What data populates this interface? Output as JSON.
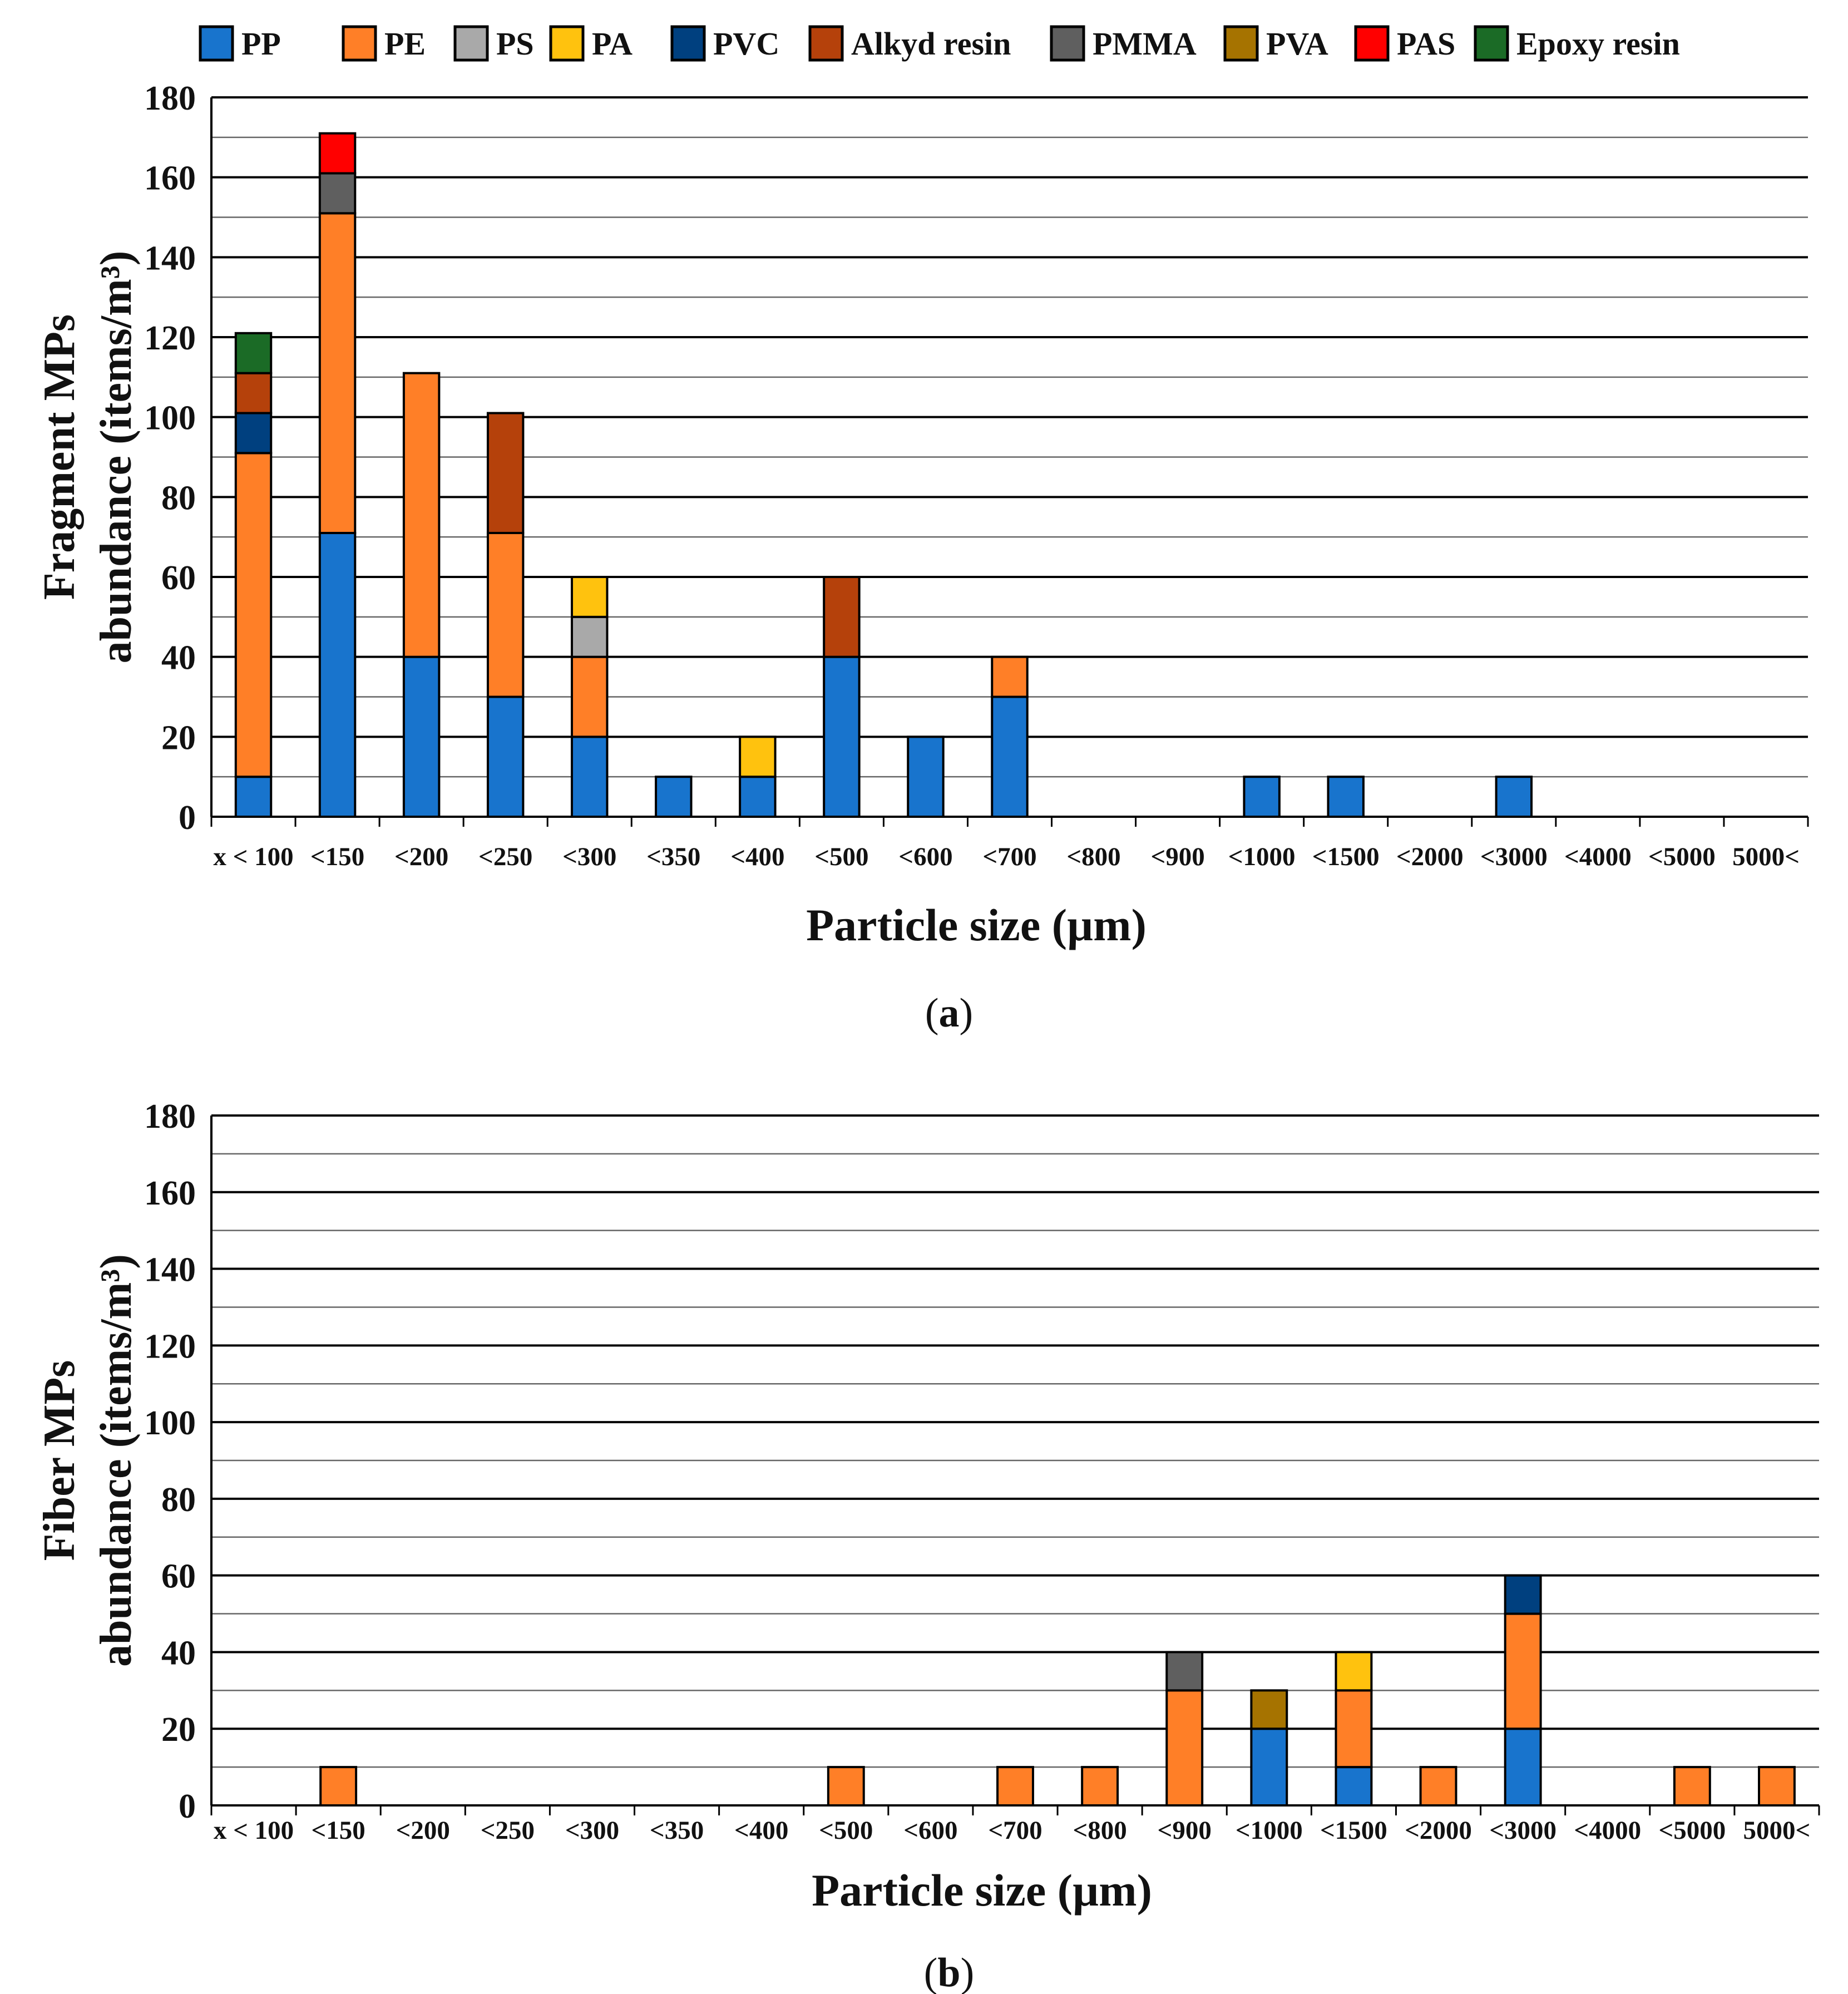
{
  "legend": [
    {
      "name": "PP",
      "color": "#1874CD"
    },
    {
      "name": "PE",
      "color": "#FF7F27"
    },
    {
      "name": "PS",
      "color": "#A9A9A9"
    },
    {
      "name": "PA",
      "color": "#FFC20E"
    },
    {
      "name": "PVC",
      "color": "#00407F"
    },
    {
      "name": "Alkyd resin",
      "color": "#B5410B"
    },
    {
      "name": "PMMA",
      "color": "#5F5F5F"
    },
    {
      "name": "PVA",
      "color": "#A67300"
    },
    {
      "name": "PAS",
      "color": "#FF0000"
    },
    {
      "name": "Epoxy resin",
      "color": "#1B6B26"
    }
  ],
  "chart_data": [
    {
      "type": "bar",
      "stacked": true,
      "panel_label": "a",
      "title": "",
      "xlabel": "Particle size (µm)",
      "ylabel": "Fragment MPs abundance (items/m³)",
      "ylabel_lines": [
        "Fragment MPs",
        "abundance (items/m³)"
      ],
      "ylim": [
        0,
        180
      ],
      "yticks": [
        0,
        20,
        40,
        60,
        80,
        100,
        120,
        140,
        160,
        180
      ],
      "categories": [
        "x < 100",
        "<150",
        "<200",
        "<250",
        "<300",
        "<350",
        "<400",
        "<500",
        "<600",
        "<700",
        "<800",
        "<900",
        "<1000",
        "<1500",
        "<2000",
        "<3000",
        "<4000",
        "<5000",
        "5000<"
      ],
      "series": [
        {
          "name": "PP",
          "values": [
            10,
            71,
            40,
            30,
            20,
            10,
            10,
            40,
            20,
            30,
            0,
            0,
            10,
            10,
            0,
            10,
            0,
            0,
            0
          ]
        },
        {
          "name": "PE",
          "values": [
            81,
            80,
            71,
            41,
            20,
            0,
            0,
            0,
            0,
            10,
            0,
            0,
            0,
            0,
            0,
            0,
            0,
            0,
            0
          ]
        },
        {
          "name": "PS",
          "values": [
            0,
            0,
            0,
            0,
            10,
            0,
            0,
            0,
            0,
            0,
            0,
            0,
            0,
            0,
            0,
            0,
            0,
            0,
            0
          ]
        },
        {
          "name": "PA",
          "values": [
            0,
            0,
            0,
            0,
            10,
            0,
            10,
            0,
            0,
            0,
            0,
            0,
            0,
            0,
            0,
            0,
            0,
            0,
            0
          ]
        },
        {
          "name": "PVC",
          "values": [
            10,
            0,
            0,
            0,
            0,
            0,
            0,
            0,
            0,
            0,
            0,
            0,
            0,
            0,
            0,
            0,
            0,
            0,
            0
          ]
        },
        {
          "name": "Alkyd resin",
          "values": [
            10,
            0,
            0,
            30,
            0,
            0,
            0,
            20,
            0,
            0,
            0,
            0,
            0,
            0,
            0,
            0,
            0,
            0,
            0
          ]
        },
        {
          "name": "PMMA",
          "values": [
            0,
            10,
            0,
            0,
            0,
            0,
            0,
            0,
            0,
            0,
            0,
            0,
            0,
            0,
            0,
            0,
            0,
            0,
            0
          ]
        },
        {
          "name": "PVA",
          "values": [
            0,
            0,
            0,
            0,
            0,
            0,
            0,
            0,
            0,
            0,
            0,
            0,
            0,
            0,
            0,
            0,
            0,
            0,
            0
          ]
        },
        {
          "name": "PAS",
          "values": [
            0,
            10,
            0,
            0,
            0,
            0,
            0,
            0,
            0,
            0,
            0,
            0,
            0,
            0,
            0,
            0,
            0,
            0,
            0
          ]
        },
        {
          "name": "Epoxy resin",
          "values": [
            10,
            0,
            0,
            0,
            0,
            0,
            0,
            0,
            0,
            0,
            0,
            0,
            0,
            0,
            0,
            0,
            0,
            0,
            0
          ]
        }
      ]
    },
    {
      "type": "bar",
      "stacked": true,
      "panel_label": "b",
      "title": "",
      "xlabel": "Particle size (µm)",
      "ylabel": "Fiber MPs abundance (items/m³)",
      "ylabel_lines": [
        "Fiber MPs",
        "abundance (items/m³)"
      ],
      "ylim": [
        0,
        180
      ],
      "yticks": [
        0,
        20,
        40,
        60,
        80,
        100,
        120,
        140,
        160,
        180
      ],
      "categories": [
        "x < 100",
        "<150",
        "<200",
        "<250",
        "<300",
        "<350",
        "<400",
        "<500",
        "<600",
        "<700",
        "<800",
        "<900",
        "<1000",
        "<1500",
        "<2000",
        "<3000",
        "<4000",
        "<5000",
        "5000<"
      ],
      "series": [
        {
          "name": "PP",
          "values": [
            0,
            0,
            0,
            0,
            0,
            0,
            0,
            0,
            0,
            0,
            0,
            0,
            20,
            10,
            0,
            20,
            0,
            0,
            0
          ]
        },
        {
          "name": "PE",
          "values": [
            0,
            10,
            0,
            0,
            0,
            0,
            0,
            10,
            0,
            10,
            10,
            30,
            0,
            20,
            10,
            30,
            0,
            10,
            10
          ]
        },
        {
          "name": "PS",
          "values": [
            0,
            0,
            0,
            0,
            0,
            0,
            0,
            0,
            0,
            0,
            0,
            0,
            0,
            0,
            0,
            0,
            0,
            0,
            0
          ]
        },
        {
          "name": "PA",
          "values": [
            0,
            0,
            0,
            0,
            0,
            0,
            0,
            0,
            0,
            0,
            0,
            0,
            0,
            10,
            0,
            0,
            0,
            0,
            0
          ]
        },
        {
          "name": "PVC",
          "values": [
            0,
            0,
            0,
            0,
            0,
            0,
            0,
            0,
            0,
            0,
            0,
            0,
            0,
            0,
            0,
            10,
            0,
            0,
            0
          ]
        },
        {
          "name": "Alkyd resin",
          "values": [
            0,
            0,
            0,
            0,
            0,
            0,
            0,
            0,
            0,
            0,
            0,
            0,
            0,
            0,
            0,
            0,
            0,
            0,
            0
          ]
        },
        {
          "name": "PMMA",
          "values": [
            0,
            0,
            0,
            0,
            0,
            0,
            0,
            0,
            0,
            0,
            0,
            10,
            0,
            0,
            0,
            0,
            0,
            0,
            0
          ]
        },
        {
          "name": "PVA",
          "values": [
            0,
            0,
            0,
            0,
            0,
            0,
            0,
            0,
            0,
            0,
            0,
            0,
            10,
            0,
            0,
            0,
            0,
            0,
            0
          ]
        },
        {
          "name": "PAS",
          "values": [
            0,
            0,
            0,
            0,
            0,
            0,
            0,
            0,
            0,
            0,
            0,
            0,
            0,
            0,
            0,
            0,
            0,
            0,
            0
          ]
        },
        {
          "name": "Epoxy resin",
          "values": [
            0,
            0,
            0,
            0,
            0,
            0,
            0,
            0,
            0,
            0,
            0,
            0,
            0,
            0,
            0,
            0,
            0,
            0,
            0
          ]
        }
      ]
    }
  ]
}
